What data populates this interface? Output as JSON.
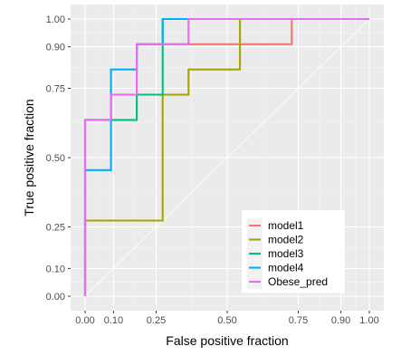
{
  "chart_data": {
    "type": "line",
    "title": "",
    "xlabel": "False positive fraction",
    "ylabel": "True positive fraction",
    "xlim": [
      0,
      1
    ],
    "ylim": [
      0,
      1
    ],
    "x_ticks": [
      0.0,
      0.1,
      0.25,
      0.5,
      0.75,
      0.9,
      1.0
    ],
    "x_tick_labels": [
      "0.00",
      "0.10",
      "0.25",
      "0.50",
      "0.75",
      "0.90",
      "1.00"
    ],
    "y_ticks": [
      0.0,
      0.1,
      0.25,
      0.5,
      0.75,
      0.9,
      1.0
    ],
    "y_tick_labels": [
      "0.00",
      "0.10",
      "0.25",
      "0.50",
      "0.75",
      "0.90",
      "1.00"
    ],
    "grid": true,
    "reference_line": {
      "from": [
        0,
        0
      ],
      "to": [
        1,
        1
      ]
    },
    "legend_position": "bottom-right",
    "series": [
      {
        "name": "model1",
        "color": "#F8766D",
        "points": [
          [
            0,
            0
          ],
          [
            0,
            0.636
          ],
          [
            0.091,
            0.636
          ],
          [
            0.091,
            0.727
          ],
          [
            0.182,
            0.727
          ],
          [
            0.182,
            0.909
          ],
          [
            0.364,
            0.909
          ],
          [
            0.727,
            0.909
          ],
          [
            0.727,
            1.0
          ],
          [
            1.0,
            1.0
          ]
        ]
      },
      {
        "name": "model2",
        "color": "#A3A500",
        "points": [
          [
            0,
            0
          ],
          [
            0,
            0.273
          ],
          [
            0.273,
            0.273
          ],
          [
            0.273,
            0.727
          ],
          [
            0.364,
            0.727
          ],
          [
            0.364,
            0.818
          ],
          [
            0.545,
            0.818
          ],
          [
            0.545,
            1.0
          ],
          [
            1.0,
            1.0
          ]
        ]
      },
      {
        "name": "model3",
        "color": "#00BF7D",
        "points": [
          [
            0,
            0
          ],
          [
            0,
            0.636
          ],
          [
            0.091,
            0.636
          ],
          [
            0.091,
            0.636
          ],
          [
            0.182,
            0.636
          ],
          [
            0.182,
            0.727
          ],
          [
            0.273,
            0.727
          ],
          [
            0.273,
            1.0
          ],
          [
            1.0,
            1.0
          ]
        ]
      },
      {
        "name": "model4",
        "color": "#00B0F6",
        "points": [
          [
            0,
            0
          ],
          [
            0,
            0.455
          ],
          [
            0.091,
            0.455
          ],
          [
            0.091,
            0.818
          ],
          [
            0.182,
            0.818
          ],
          [
            0.182,
            0.909
          ],
          [
            0.273,
            0.909
          ],
          [
            0.273,
            1.0
          ],
          [
            1.0,
            1.0
          ]
        ]
      },
      {
        "name": "Obese_pred",
        "color": "#E76BF3",
        "points": [
          [
            0,
            0
          ],
          [
            0,
            0.636
          ],
          [
            0.091,
            0.636
          ],
          [
            0.091,
            0.727
          ],
          [
            0.182,
            0.727
          ],
          [
            0.182,
            0.909
          ],
          [
            0.364,
            0.909
          ],
          [
            0.364,
            1.0
          ],
          [
            1.0,
            1.0
          ]
        ]
      }
    ]
  }
}
